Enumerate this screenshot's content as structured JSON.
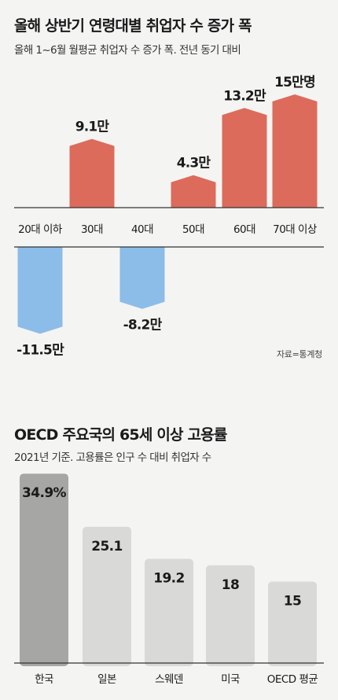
{
  "chart_data": [
    {
      "type": "bar",
      "title": "올해 상반기 연령대별 취업자 수 증가 폭",
      "subtitle": "올해 1~6월 월평균 취업자 수 증가 폭. 전년 동기 대비",
      "unit": "만명",
      "categories": [
        "20대 이하",
        "30대",
        "40대",
        "50대",
        "60대",
        "70대 이상"
      ],
      "values": [
        -11.5,
        9.1,
        -8.2,
        4.3,
        13.2,
        15
      ],
      "value_labels": [
        "-11.5만",
        "9.1만",
        "-8.2만",
        "4.3만",
        "13.2만",
        "15만명"
      ],
      "colors": {
        "positive": "#dc6b5c",
        "negative": "#8cbde8"
      },
      "source": "자료=통계청"
    },
    {
      "type": "bar",
      "title": "OECD 주요국의 65세 이상 고용률",
      "subtitle": "2021년 기준. 고용률은 인구 수 대비 취업자 수",
      "unit": "%",
      "categories": [
        "한국",
        "일본",
        "스웨덴",
        "미국",
        "OECD 평균"
      ],
      "values": [
        34.9,
        25.1,
        19.2,
        18,
        15
      ],
      "value_labels": [
        "34.9%",
        "25.1",
        "19.2",
        "18",
        "15"
      ],
      "colors": {
        "highlight": "#a6a6a4",
        "default": "#d9d9d7"
      }
    }
  ]
}
